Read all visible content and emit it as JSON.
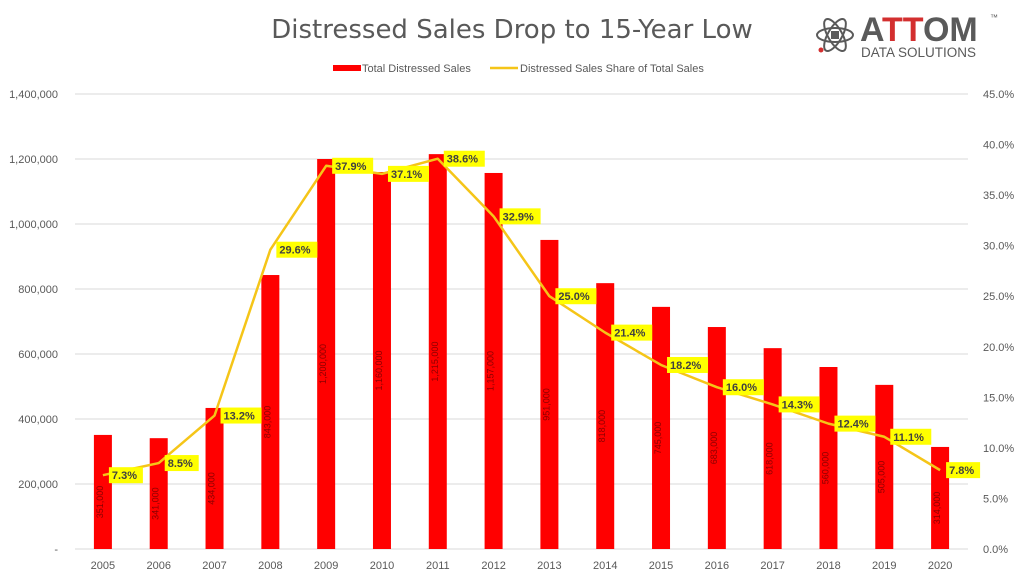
{
  "chart_data": {
    "type": "bar",
    "title": "Distressed Sales Drop to 15-Year Low",
    "categories": [
      "2005",
      "2006",
      "2007",
      "2008",
      "2009",
      "2010",
      "2011",
      "2012",
      "2013",
      "2014",
      "2015",
      "2016",
      "2017",
      "2018",
      "2019",
      "2020"
    ],
    "series": [
      {
        "name": "Total Distressed Sales",
        "type": "bar",
        "axis": "left",
        "color": "#ff0000",
        "values": [
          351000,
          341000,
          434000,
          843000,
          1200000,
          1160000,
          1215000,
          1157000,
          951000,
          818000,
          745000,
          683000,
          618000,
          560000,
          505000,
          314000
        ]
      },
      {
        "name": "Distressed Sales Share of Total Sales",
        "type": "line",
        "axis": "right",
        "color": "#f5c518",
        "values": [
          7.3,
          8.5,
          13.2,
          29.6,
          37.9,
          37.1,
          38.6,
          32.9,
          25.0,
          21.4,
          18.2,
          16.0,
          14.3,
          12.4,
          11.1,
          7.8
        ],
        "labels": [
          "7.3%",
          "8.5%",
          "13.2%",
          "29.6%",
          "37.9%",
          "37.1%",
          "38.6%",
          "32.9%",
          "25.0%",
          "21.4%",
          "18.2%",
          "16.0%",
          "14.3%",
          "12.4%",
          "11.1%",
          "7.8%"
        ]
      }
    ],
    "left_axis": {
      "ylim": [
        0,
        1400000
      ],
      "ticks": [
        "-",
        "200,000",
        "400,000",
        "600,000",
        "800,000",
        "1,000,000",
        "1,200,000",
        "1,400,000"
      ]
    },
    "right_axis": {
      "ylim": [
        0,
        45
      ],
      "ticks": [
        "0.0%",
        "5.0%",
        "10.0%",
        "15.0%",
        "20.0%",
        "25.0%",
        "30.0%",
        "35.0%",
        "40.0%",
        "45.0%"
      ]
    },
    "legend": {
      "placement": "top-center",
      "entries": [
        "Total Distressed Sales",
        "Distressed Sales Share of Total Sales"
      ]
    },
    "grid": true,
    "label_bg_color": "#ffff00"
  },
  "logo": {
    "name": "ATTOM",
    "tm": "™",
    "subtitle": "DATA SOLUTIONS",
    "accent_color": "#d32f2f"
  }
}
